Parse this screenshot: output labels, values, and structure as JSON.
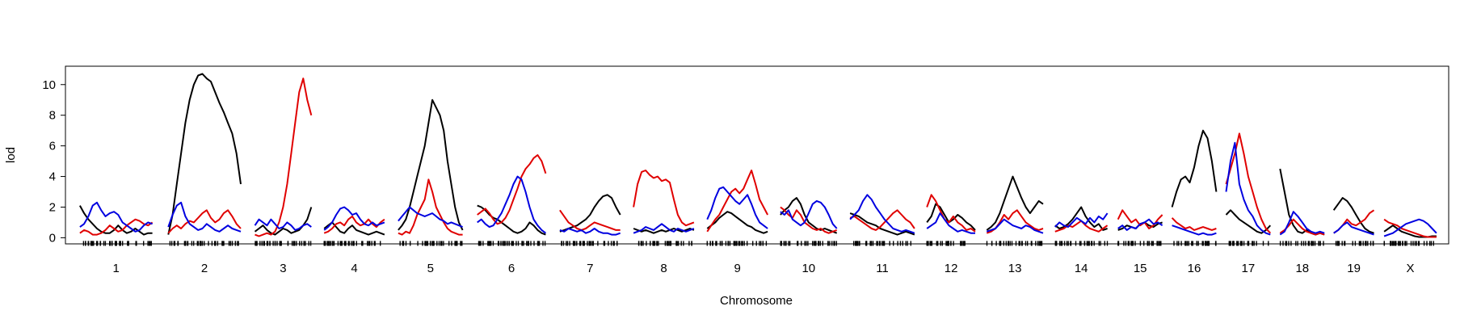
{
  "chart_data": {
    "type": "line",
    "title": "",
    "xlabel": "Chromosome",
    "ylabel": "lod",
    "ylim": [
      -0.4,
      11.2
    ],
    "yticks": [
      0,
      2,
      4,
      6,
      8,
      10
    ],
    "grid": false,
    "legend": "none",
    "colors": {
      "black": "#000000",
      "red": "#e00000",
      "blue": "#0000e0"
    },
    "chromosomes": [
      {
        "name": "1",
        "width": 90,
        "black": [
          2.1,
          1.6,
          1.2,
          0.9,
          0.6,
          0.4,
          0.3,
          0.3,
          0.5,
          0.8,
          0.5,
          0.3,
          0.4,
          0.6,
          0.4,
          0.2,
          0.3,
          0.3
        ],
        "red": [
          0.3,
          0.5,
          0.4,
          0.2,
          0.2,
          0.3,
          0.5,
          0.8,
          0.6,
          0.4,
          0.5,
          0.8,
          1.0,
          1.2,
          1.1,
          0.9,
          0.8,
          1.0
        ],
        "blue": [
          0.7,
          0.9,
          1.4,
          2.1,
          2.3,
          1.8,
          1.4,
          1.6,
          1.7,
          1.5,
          1.0,
          0.8,
          0.6,
          0.4,
          0.5,
          0.8,
          1.0,
          0.9
        ]
      },
      {
        "name": "2",
        "width": 90,
        "black": [
          0.2,
          1.5,
          3.5,
          5.5,
          7.5,
          9.0,
          10.0,
          10.6,
          10.7,
          10.4,
          10.2,
          9.5,
          8.8,
          8.2,
          7.5,
          6.8,
          5.5,
          3.5
        ],
        "red": [
          0.3,
          0.6,
          0.8,
          0.6,
          0.9,
          1.1,
          1.0,
          1.3,
          1.6,
          1.8,
          1.3,
          1.0,
          1.2,
          1.6,
          1.8,
          1.4,
          0.9,
          0.6
        ],
        "blue": [
          0.7,
          1.5,
          2.1,
          2.3,
          1.4,
          0.9,
          0.7,
          0.5,
          0.6,
          0.9,
          0.7,
          0.5,
          0.4,
          0.6,
          0.8,
          0.6,
          0.5,
          0.4
        ]
      },
      {
        "name": "3",
        "width": 70,
        "black": [
          0.4,
          0.6,
          0.8,
          0.5,
          0.3,
          0.2,
          0.4,
          0.6,
          0.5,
          0.3,
          0.4,
          0.5,
          0.8,
          1.2,
          2.0
        ],
        "red": [
          0.2,
          0.1,
          0.2,
          0.3,
          0.2,
          0.4,
          1.0,
          2.0,
          3.5,
          5.5,
          7.5,
          9.5,
          10.4,
          9.0,
          8.0
        ],
        "blue": [
          0.8,
          1.2,
          1.0,
          0.8,
          1.2,
          0.9,
          0.6,
          0.7,
          1.0,
          0.8,
          0.5,
          0.6,
          0.8,
          0.9,
          0.7
        ]
      },
      {
        "name": "4",
        "width": 75,
        "black": [
          0.6,
          0.8,
          1.0,
          0.7,
          0.4,
          0.3,
          0.6,
          0.8,
          0.5,
          0.4,
          0.3,
          0.2,
          0.3,
          0.4,
          0.3,
          0.2
        ],
        "red": [
          0.3,
          0.4,
          0.6,
          0.9,
          1.0,
          0.8,
          1.2,
          1.4,
          1.0,
          0.8,
          0.9,
          1.2,
          0.9,
          0.7,
          1.0,
          1.2
        ],
        "blue": [
          0.5,
          0.7,
          1.0,
          1.5,
          1.9,
          2.0,
          1.8,
          1.5,
          1.6,
          1.2,
          0.9,
          0.8,
          1.0,
          0.8,
          0.9,
          1.0
        ]
      },
      {
        "name": "5",
        "width": 80,
        "black": [
          0.5,
          0.8,
          1.2,
          2.0,
          3.0,
          4.0,
          5.0,
          6.0,
          7.5,
          9.0,
          8.5,
          8.0,
          7.0,
          5.0,
          3.5,
          2.0,
          1.0,
          0.5
        ],
        "red": [
          0.3,
          0.2,
          0.4,
          0.3,
          0.8,
          1.5,
          2.0,
          2.5,
          3.8,
          3.0,
          2.0,
          1.5,
          1.0,
          0.6,
          0.4,
          0.3,
          0.2,
          0.2
        ],
        "blue": [
          1.1,
          1.4,
          1.7,
          2.0,
          1.8,
          1.6,
          1.5,
          1.4,
          1.5,
          1.6,
          1.4,
          1.2,
          1.1,
          0.9,
          1.0,
          0.9,
          0.8,
          0.7
        ]
      },
      {
        "name": "6",
        "width": 85,
        "black": [
          2.1,
          2.0,
          1.8,
          1.5,
          1.3,
          1.2,
          1.0,
          0.8,
          0.6,
          0.4,
          0.3,
          0.4,
          0.6,
          1.0,
          0.8,
          0.5,
          0.3,
          0.2
        ],
        "red": [
          1.5,
          1.7,
          1.9,
          1.6,
          1.2,
          0.9,
          1.0,
          1.3,
          1.8,
          2.5,
          3.2,
          4.0,
          4.5,
          4.8,
          5.2,
          5.4,
          5.0,
          4.2
        ],
        "blue": [
          1.0,
          1.2,
          0.9,
          0.7,
          0.8,
          1.2,
          1.6,
          2.2,
          2.8,
          3.5,
          4.0,
          3.8,
          3.0,
          2.0,
          1.2,
          0.8,
          0.5,
          0.3
        ]
      },
      {
        "name": "7",
        "width": 75,
        "black": [
          0.4,
          0.5,
          0.6,
          0.7,
          0.8,
          1.0,
          1.2,
          1.5,
          2.0,
          2.4,
          2.7,
          2.8,
          2.6,
          2.0,
          1.5
        ],
        "red": [
          1.8,
          1.4,
          1.0,
          0.8,
          0.6,
          0.5,
          0.6,
          0.8,
          1.0,
          0.9,
          0.8,
          0.7,
          0.6,
          0.5,
          0.5
        ],
        "blue": [
          0.5,
          0.4,
          0.6,
          0.5,
          0.4,
          0.5,
          0.3,
          0.4,
          0.6,
          0.4,
          0.3,
          0.3,
          0.2,
          0.2,
          0.3
        ]
      },
      {
        "name": "8",
        "width": 75,
        "black": [
          0.6,
          0.5,
          0.4,
          0.5,
          0.4,
          0.3,
          0.4,
          0.5,
          0.4,
          0.5,
          0.6,
          0.5,
          0.4,
          0.5,
          0.6,
          0.5
        ],
        "red": [
          2.0,
          3.5,
          4.3,
          4.4,
          4.1,
          3.9,
          4.0,
          3.7,
          3.8,
          3.6,
          2.5,
          1.5,
          1.0,
          0.8,
          0.9,
          1.0
        ],
        "blue": [
          0.3,
          0.4,
          0.5,
          0.7,
          0.6,
          0.5,
          0.7,
          0.9,
          0.7,
          0.5,
          0.4,
          0.6,
          0.5,
          0.4,
          0.5,
          0.6
        ]
      },
      {
        "name": "9",
        "width": 75,
        "black": [
          0.6,
          0.8,
          1.0,
          1.3,
          1.5,
          1.7,
          1.6,
          1.4,
          1.2,
          1.0,
          0.8,
          0.7,
          0.5,
          0.4,
          0.3,
          0.4
        ],
        "red": [
          0.4,
          0.8,
          1.2,
          1.5,
          2.0,
          2.5,
          3.0,
          3.2,
          2.9,
          3.2,
          3.8,
          4.4,
          3.5,
          2.5,
          2.0,
          1.5
        ],
        "blue": [
          1.2,
          1.8,
          2.6,
          3.2,
          3.3,
          3.0,
          2.7,
          2.4,
          2.2,
          2.5,
          2.8,
          2.2,
          1.5,
          1.0,
          0.8,
          0.6
        ]
      },
      {
        "name": "10",
        "width": 70,
        "black": [
          1.5,
          1.8,
          2.0,
          2.4,
          2.6,
          2.2,
          1.5,
          1.0,
          0.8,
          0.6,
          0.5,
          0.6,
          0.5,
          0.4,
          0.3
        ],
        "red": [
          2.0,
          1.8,
          1.5,
          1.3,
          1.8,
          1.5,
          1.0,
          0.8,
          0.6,
          0.5,
          0.6,
          0.4,
          0.3,
          0.4,
          0.5
        ],
        "blue": [
          1.7,
          1.5,
          1.8,
          1.2,
          1.0,
          0.8,
          1.0,
          1.6,
          2.2,
          2.4,
          2.3,
          2.0,
          1.5,
          0.9,
          0.6
        ]
      },
      {
        "name": "11",
        "width": 80,
        "black": [
          1.6,
          1.5,
          1.4,
          1.2,
          1.0,
          0.9,
          0.8,
          0.6,
          0.5,
          0.4,
          0.3,
          0.2,
          0.3,
          0.4,
          0.3,
          0.2
        ],
        "red": [
          1.3,
          1.4,
          1.2,
          1.0,
          0.8,
          0.6,
          0.5,
          0.7,
          1.0,
          1.3,
          1.6,
          1.8,
          1.5,
          1.2,
          1.0,
          0.6
        ],
        "blue": [
          1.2,
          1.5,
          1.8,
          2.4,
          2.8,
          2.5,
          2.0,
          1.6,
          1.2,
          0.9,
          0.6,
          0.5,
          0.4,
          0.5,
          0.4,
          0.3
        ]
      },
      {
        "name": "12",
        "width": 60,
        "black": [
          1.0,
          1.4,
          2.2,
          2.0,
          1.5,
          1.0,
          1.2,
          1.5,
          1.3,
          1.0,
          0.8,
          0.5
        ],
        "red": [
          2.0,
          2.8,
          2.4,
          1.8,
          1.2,
          1.0,
          1.4,
          1.0,
          0.8,
          0.5,
          0.6,
          0.4
        ],
        "blue": [
          0.6,
          0.8,
          1.0,
          1.6,
          1.2,
          0.8,
          0.6,
          0.4,
          0.5,
          0.4,
          0.3,
          0.3
        ]
      },
      {
        "name": "13",
        "width": 70,
        "black": [
          0.5,
          0.7,
          1.0,
          1.6,
          2.4,
          3.2,
          4.0,
          3.3,
          2.6,
          2.0,
          1.6,
          2.0,
          2.4,
          2.2
        ],
        "red": [
          0.3,
          0.4,
          0.6,
          1.0,
          1.5,
          1.2,
          1.6,
          1.8,
          1.4,
          1.0,
          0.8,
          0.6,
          0.5,
          0.6
        ],
        "blue": [
          0.4,
          0.5,
          0.6,
          0.9,
          1.2,
          1.0,
          0.8,
          0.7,
          0.6,
          0.8,
          0.7,
          0.5,
          0.4,
          0.3
        ]
      },
      {
        "name": "14",
        "width": 65,
        "black": [
          0.8,
          0.6,
          0.7,
          0.9,
          1.2,
          1.6,
          2.0,
          1.4,
          1.0,
          0.7,
          0.9,
          0.5,
          0.6
        ],
        "red": [
          0.4,
          0.5,
          0.6,
          0.8,
          0.7,
          0.9,
          1.1,
          0.8,
          0.6,
          0.5,
          0.4,
          0.6,
          0.8
        ],
        "blue": [
          0.7,
          1.0,
          0.8,
          0.7,
          1.0,
          1.3,
          1.1,
          0.9,
          1.3,
          1.0,
          1.4,
          1.2,
          1.6
        ]
      },
      {
        "name": "15",
        "width": 55,
        "black": [
          0.5,
          0.6,
          0.8,
          0.7,
          0.6,
          0.9,
          1.0,
          0.8,
          0.7,
          0.9,
          1.0
        ],
        "red": [
          1.2,
          1.8,
          1.4,
          1.0,
          1.2,
          0.8,
          1.0,
          0.6,
          0.8,
          1.2,
          1.5
        ],
        "blue": [
          0.6,
          0.8,
          0.5,
          0.7,
          0.6,
          0.9,
          1.0,
          1.2,
          0.9,
          1.0,
          0.8
        ]
      },
      {
        "name": "16",
        "width": 55,
        "black": [
          2.0,
          3.0,
          3.8,
          4.0,
          3.6,
          4.6,
          6.0,
          7.0,
          6.5,
          5.0,
          3.0
        ],
        "red": [
          1.3,
          1.0,
          0.8,
          0.6,
          0.7,
          0.5,
          0.6,
          0.7,
          0.6,
          0.5,
          0.6
        ],
        "blue": [
          0.8,
          0.7,
          0.6,
          0.5,
          0.4,
          0.3,
          0.2,
          0.3,
          0.2,
          0.2,
          0.3
        ]
      },
      {
        "name": "17",
        "width": 55,
        "black": [
          1.5,
          1.8,
          1.5,
          1.2,
          1.0,
          0.8,
          0.6,
          0.4,
          0.3,
          0.5,
          0.8
        ],
        "red": [
          3.5,
          4.5,
          5.5,
          6.8,
          5.5,
          4.0,
          3.0,
          2.0,
          1.2,
          0.6,
          0.3
        ],
        "blue": [
          3.0,
          5.0,
          6.2,
          3.5,
          2.5,
          1.8,
          1.4,
          0.8,
          0.5,
          0.3,
          0.2
        ]
      },
      {
        "name": "18",
        "width": 55,
        "black": [
          4.5,
          3.0,
          1.5,
          0.8,
          0.4,
          0.3,
          0.5,
          0.3,
          0.2,
          0.3,
          0.2
        ],
        "red": [
          0.3,
          0.5,
          0.8,
          1.2,
          0.9,
          0.6,
          0.4,
          0.3,
          0.2,
          0.3,
          0.2
        ],
        "blue": [
          0.2,
          0.4,
          1.0,
          1.7,
          1.4,
          1.0,
          0.6,
          0.4,
          0.3,
          0.4,
          0.3
        ]
      },
      {
        "name": "19",
        "width": 50,
        "black": [
          1.8,
          2.2,
          2.6,
          2.4,
          2.0,
          1.5,
          1.0,
          0.6,
          0.4,
          0.3
        ],
        "red": [
          0.3,
          0.5,
          0.8,
          1.2,
          0.9,
          0.8,
          1.0,
          1.2,
          1.6,
          1.8
        ],
        "blue": [
          0.3,
          0.5,
          0.8,
          1.0,
          0.7,
          0.6,
          0.5,
          0.4,
          0.3,
          0.2
        ]
      },
      {
        "name": "X",
        "width": 65,
        "black": [
          0.4,
          0.6,
          0.8,
          0.6,
          0.4,
          0.3,
          0.2,
          0.1,
          0.05,
          0.05,
          0.05,
          0.1,
          0.1
        ],
        "red": [
          1.2,
          1.0,
          0.9,
          0.8,
          0.6,
          0.5,
          0.4,
          0.3,
          0.2,
          0.1,
          0.05,
          0.05,
          0.05
        ],
        "blue": [
          0.1,
          0.2,
          0.3,
          0.5,
          0.7,
          0.9,
          1.0,
          1.1,
          1.2,
          1.1,
          0.9,
          0.6,
          0.3
        ]
      }
    ]
  }
}
